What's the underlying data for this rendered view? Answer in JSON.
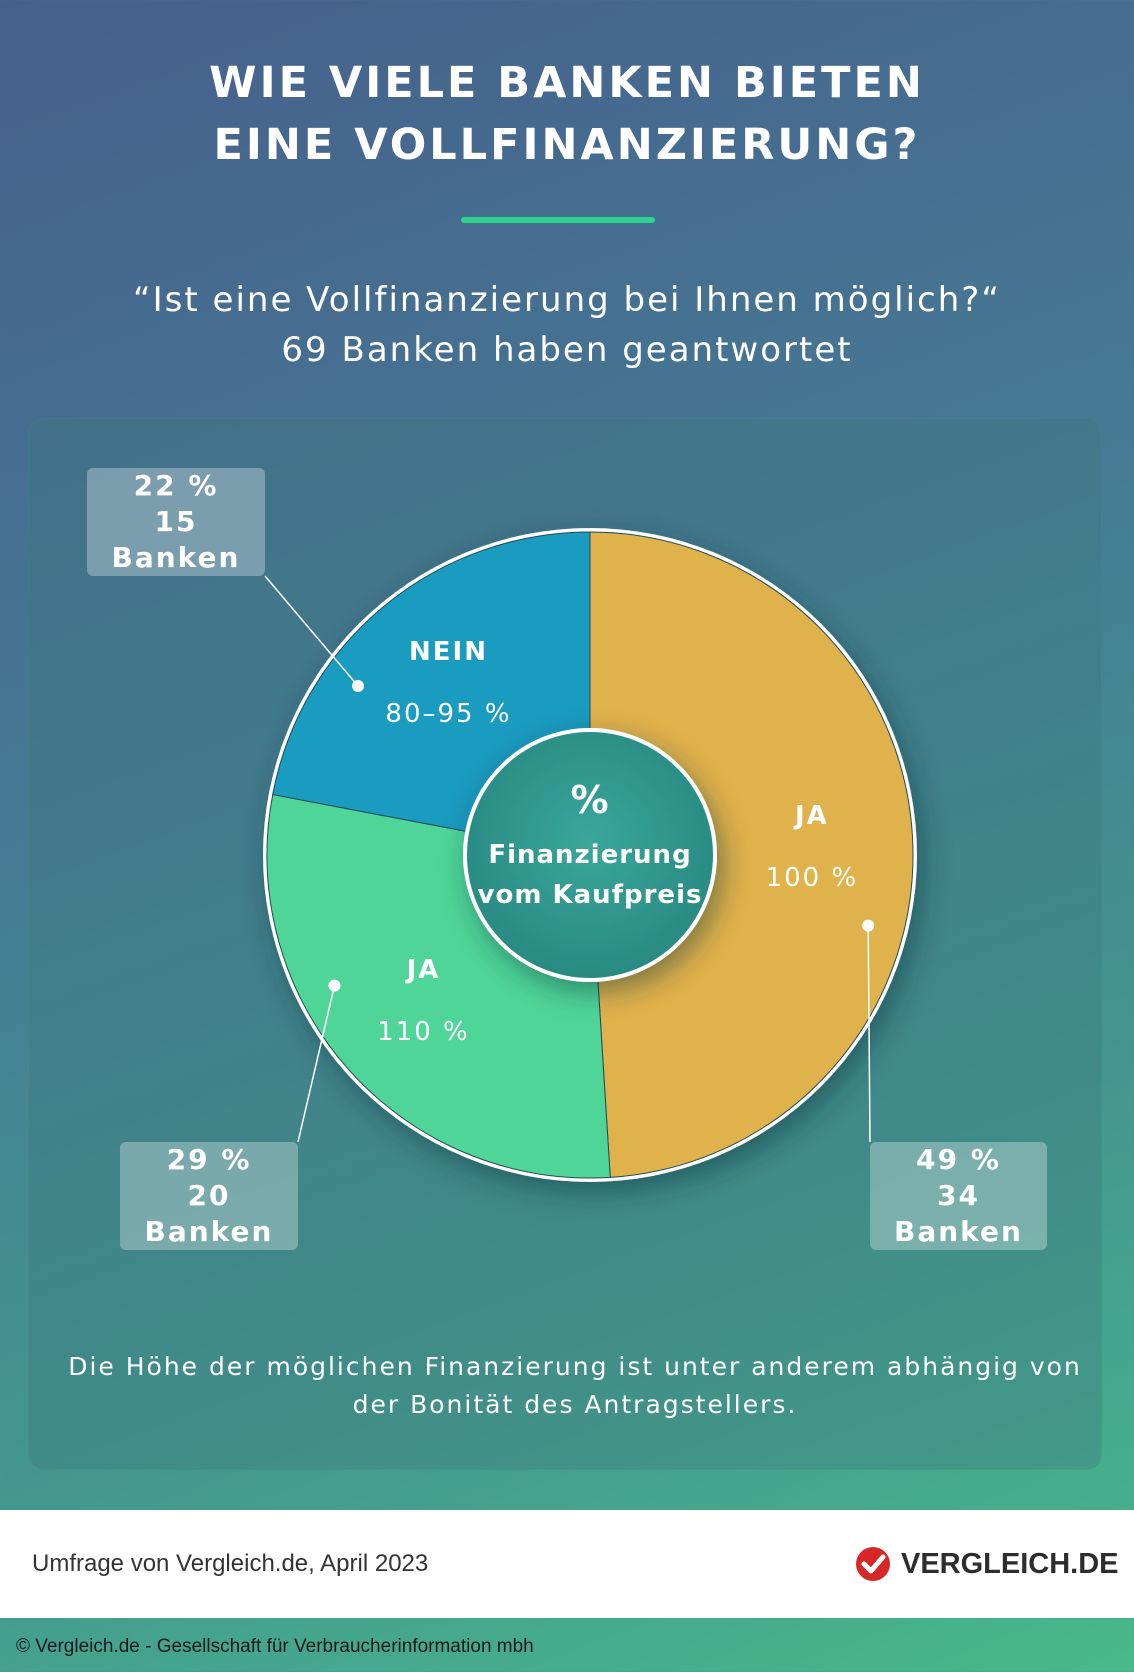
{
  "header": {
    "title_line1": "WIE VIELE BANKEN BIETEN",
    "title_line2": "EINE VOLLFINANZIERUNG?",
    "subtitle_line1": "“Ist eine Vollfinanzierung bei Ihnen möglich?“",
    "subtitle_line2": "69 Banken haben geantwortet"
  },
  "center": {
    "symbol": "%",
    "line1": "Finanzierung",
    "line2": "vom Kaufpreis"
  },
  "colors": {
    "ja100": "#e0b24b",
    "ja110": "#4fd598",
    "nein": "#1a9bc0",
    "center": "#2f9c93",
    "accent": "#2ed38d",
    "brand_red": "#d62829"
  },
  "chart_data": {
    "type": "pie",
    "title": "WIE VIELE BANKEN BIETEN EINE VOLLFINANZIERUNG?",
    "slices": [
      {
        "label": "JA",
        "range": "100 %",
        "percent": 49,
        "banks": 34,
        "percent_text": "49 %",
        "banks_text": "34 Banken"
      },
      {
        "label": "JA",
        "range": "110 %",
        "percent": 29,
        "banks": 20,
        "percent_text": "29 %",
        "banks_text": "20 Banken"
      },
      {
        "label": "NEIN",
        "range": "80–95 %",
        "percent": 22,
        "banks": 15,
        "percent_text": "22 %",
        "banks_text": "15 Banken"
      }
    ],
    "total_banks": 69
  },
  "note": {
    "line1": "Die Höhe der möglichen Finanzierung ist unter anderem abhängig von",
    "line2": "der Bonität des Antragstellers."
  },
  "footer": {
    "source": "Umfrage von Vergleich.de, April 2023",
    "brand": "VERGLEICH.DE",
    "brand_icon": "checkmark-circle-icon",
    "copyright": "© Vergleich.de - Gesellschaft für Verbraucherinformation mbh"
  }
}
